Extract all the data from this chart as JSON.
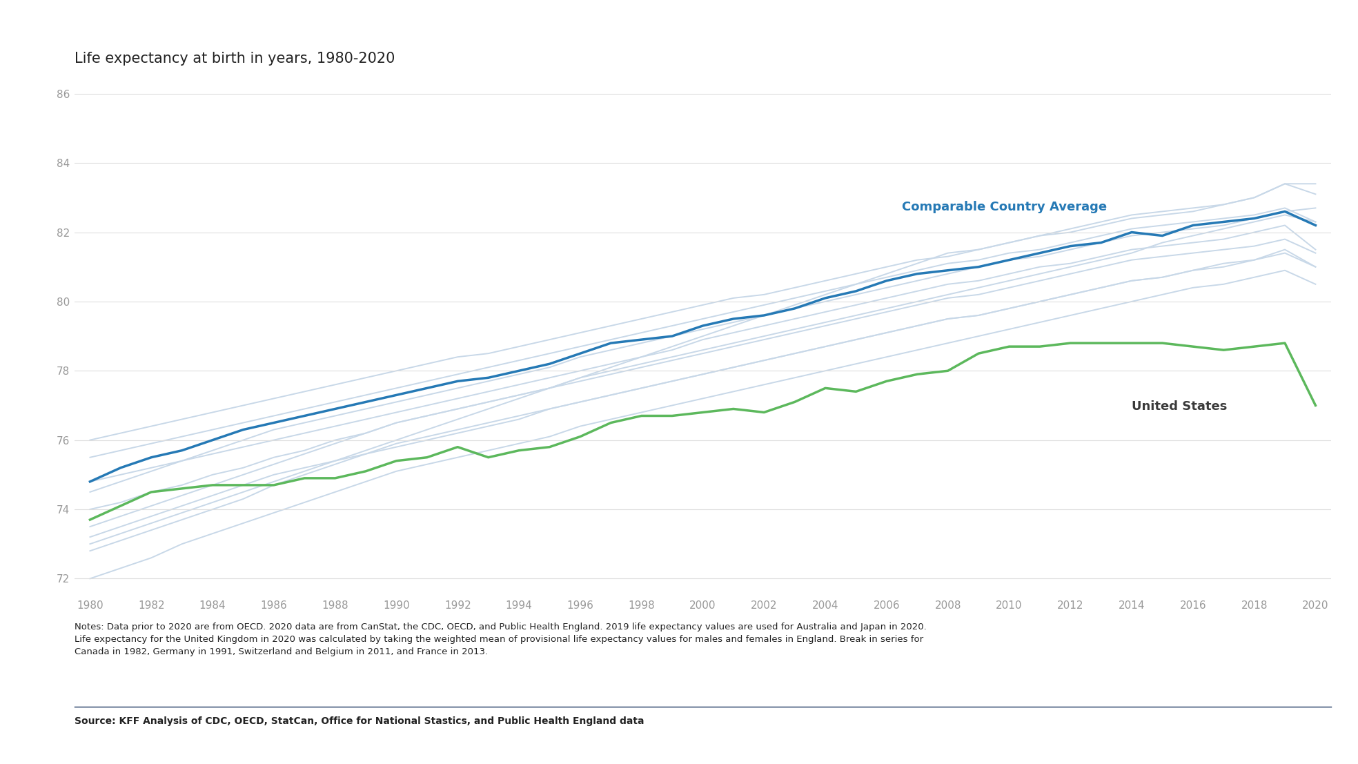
{
  "title": "Life expectancy at birth in years, 1980-2020",
  "notes": "Notes: Data prior to 2020 are from OECD. 2020 data are from CanStat, the CDC, OECD, and Public Health England. 2019 life expectancy values are used for Australia and Japan in 2020.\nLife expectancy for the United Kingdom in 2020 was calculated by taking the weighted mean of provisional life expectancy values for males and females in England. Break in series for\nCanada in 1982, Germany in 1991, Switzerland and Belgium in 2011, and France in 2013.",
  "source": "Source: KFF Analysis of CDC, OECD, StatCan, Office for National Stastics, and Public Health England data",
  "ylabel_ticks": [
    72,
    74,
    76,
    78,
    80,
    82,
    84,
    86
  ],
  "xlabel_ticks": [
    1980,
    1982,
    1984,
    1986,
    1988,
    1990,
    1992,
    1994,
    1996,
    1998,
    2000,
    2002,
    2004,
    2006,
    2008,
    2010,
    2012,
    2014,
    2016,
    2018,
    2020
  ],
  "ylim": [
    71.5,
    86.5
  ],
  "xlim": [
    1979.5,
    2020.5
  ],
  "us_color": "#5cb85c",
  "avg_color": "#2579b5",
  "gray_color": "#c8d8e8",
  "background_color": "#ffffff",
  "us_label": "United States",
  "avg_label": "Comparable Country Average",
  "us_data": {
    "years": [
      1980,
      1981,
      1982,
      1983,
      1984,
      1985,
      1986,
      1987,
      1988,
      1989,
      1990,
      1991,
      1992,
      1993,
      1994,
      1995,
      1996,
      1997,
      1998,
      1999,
      2000,
      2001,
      2002,
      2003,
      2004,
      2005,
      2006,
      2007,
      2008,
      2009,
      2010,
      2011,
      2012,
      2013,
      2014,
      2015,
      2016,
      2017,
      2018,
      2019,
      2020
    ],
    "values": [
      73.7,
      74.1,
      74.5,
      74.6,
      74.7,
      74.7,
      74.7,
      74.9,
      74.9,
      75.1,
      75.4,
      75.5,
      75.8,
      75.5,
      75.7,
      75.8,
      76.1,
      76.5,
      76.7,
      76.7,
      76.8,
      76.9,
      76.8,
      77.1,
      77.5,
      77.4,
      77.7,
      77.9,
      78.0,
      78.5,
      78.7,
      78.7,
      78.8,
      78.8,
      78.8,
      78.8,
      78.7,
      78.6,
      78.7,
      78.8,
      77.0
    ]
  },
  "avg_data": {
    "years": [
      1980,
      1981,
      1982,
      1983,
      1984,
      1985,
      1986,
      1987,
      1988,
      1989,
      1990,
      1991,
      1992,
      1993,
      1994,
      1995,
      1996,
      1997,
      1998,
      1999,
      2000,
      2001,
      2002,
      2003,
      2004,
      2005,
      2006,
      2007,
      2008,
      2009,
      2010,
      2011,
      2012,
      2013,
      2014,
      2015,
      2016,
      2017,
      2018,
      2019,
      2020
    ],
    "values": [
      74.8,
      75.2,
      75.5,
      75.7,
      76.0,
      76.3,
      76.5,
      76.7,
      76.9,
      77.1,
      77.3,
      77.5,
      77.7,
      77.8,
      78.0,
      78.2,
      78.5,
      78.8,
      78.9,
      79.0,
      79.3,
      79.5,
      79.6,
      79.8,
      80.1,
      80.3,
      80.6,
      80.8,
      80.9,
      81.0,
      81.2,
      81.4,
      81.6,
      81.7,
      82.0,
      81.9,
      82.2,
      82.3,
      82.4,
      82.6,
      82.2
    ]
  },
  "country_lines": [
    [
      73.0,
      73.3,
      73.6,
      73.9,
      74.2,
      74.5,
      74.8,
      75.1,
      75.4,
      75.7,
      76.0,
      76.3,
      76.6,
      76.9,
      77.2,
      77.5,
      77.8,
      78.1,
      78.4,
      78.7,
      79.0,
      79.3,
      79.6,
      79.9,
      80.2,
      80.5,
      80.8,
      81.1,
      81.4,
      81.5,
      81.7,
      81.9,
      82.1,
      82.3,
      82.5,
      82.6,
      82.7,
      82.8,
      83.0,
      83.4,
      83.4
    ],
    [
      76.0,
      76.2,
      76.4,
      76.6,
      76.8,
      77.0,
      77.2,
      77.4,
      77.6,
      77.8,
      78.0,
      78.2,
      78.4,
      78.5,
      78.7,
      78.9,
      79.1,
      79.3,
      79.5,
      79.7,
      79.9,
      80.1,
      80.2,
      80.4,
      80.6,
      80.8,
      81.0,
      81.2,
      81.3,
      81.5,
      81.7,
      81.9,
      82.0,
      82.2,
      82.4,
      82.5,
      82.6,
      82.8,
      83.0,
      83.4,
      83.1
    ],
    [
      74.5,
      74.8,
      75.1,
      75.4,
      75.7,
      76.0,
      76.3,
      76.5,
      76.7,
      76.9,
      77.1,
      77.3,
      77.5,
      77.7,
      77.9,
      78.1,
      78.4,
      78.6,
      78.8,
      79.0,
      79.2,
      79.4,
      79.6,
      79.8,
      80.0,
      80.2,
      80.4,
      80.6,
      80.8,
      81.0,
      81.2,
      81.3,
      81.5,
      81.7,
      81.9,
      82.0,
      82.1,
      82.2,
      82.4,
      82.6,
      82.7
    ],
    [
      73.5,
      73.8,
      74.1,
      74.4,
      74.7,
      75.0,
      75.3,
      75.6,
      75.9,
      76.2,
      76.5,
      76.7,
      76.9,
      77.1,
      77.3,
      77.5,
      77.8,
      78.0,
      78.2,
      78.4,
      78.6,
      78.8,
      79.0,
      79.2,
      79.4,
      79.6,
      79.8,
      80.0,
      80.2,
      80.4,
      80.6,
      80.8,
      81.0,
      81.2,
      81.4,
      81.7,
      81.9,
      82.1,
      82.3,
      82.5,
      82.3
    ],
    [
      74.0,
      74.2,
      74.5,
      74.7,
      75.0,
      75.2,
      75.5,
      75.7,
      76.0,
      76.2,
      76.5,
      76.7,
      76.9,
      77.1,
      77.3,
      77.5,
      77.7,
      77.9,
      78.1,
      78.3,
      78.5,
      78.7,
      78.9,
      79.1,
      79.3,
      79.5,
      79.7,
      79.9,
      80.1,
      80.2,
      80.4,
      80.6,
      80.8,
      81.0,
      81.2,
      81.3,
      81.4,
      81.5,
      81.6,
      81.8,
      81.4
    ],
    [
      73.2,
      73.5,
      73.8,
      74.1,
      74.4,
      74.7,
      75.0,
      75.2,
      75.4,
      75.6,
      75.8,
      76.0,
      76.2,
      76.4,
      76.6,
      76.9,
      77.1,
      77.3,
      77.5,
      77.7,
      77.9,
      78.1,
      78.3,
      78.5,
      78.7,
      78.9,
      79.1,
      79.3,
      79.5,
      79.6,
      79.8,
      80.0,
      80.2,
      80.4,
      80.6,
      80.7,
      80.9,
      81.1,
      81.2,
      81.5,
      81.0
    ],
    [
      75.5,
      75.7,
      75.9,
      76.1,
      76.3,
      76.5,
      76.7,
      76.9,
      77.1,
      77.3,
      77.5,
      77.7,
      77.9,
      78.1,
      78.3,
      78.5,
      78.7,
      78.9,
      79.1,
      79.3,
      79.5,
      79.7,
      79.9,
      80.1,
      80.3,
      80.5,
      80.7,
      80.9,
      81.1,
      81.2,
      81.4,
      81.5,
      81.7,
      81.9,
      82.1,
      82.2,
      82.3,
      82.4,
      82.5,
      82.7,
      82.3
    ],
    [
      74.8,
      75.0,
      75.2,
      75.4,
      75.6,
      75.8,
      76.0,
      76.2,
      76.4,
      76.6,
      76.8,
      77.0,
      77.2,
      77.4,
      77.6,
      77.8,
      78.0,
      78.2,
      78.4,
      78.6,
      78.9,
      79.1,
      79.3,
      79.5,
      79.7,
      79.9,
      80.1,
      80.3,
      80.5,
      80.6,
      80.8,
      81.0,
      81.1,
      81.3,
      81.5,
      81.6,
      81.7,
      81.8,
      82.0,
      82.2,
      81.5
    ],
    [
      72.8,
      73.1,
      73.4,
      73.7,
      74.0,
      74.3,
      74.7,
      75.0,
      75.3,
      75.6,
      75.9,
      76.1,
      76.3,
      76.5,
      76.7,
      76.9,
      77.1,
      77.3,
      77.5,
      77.7,
      77.9,
      78.1,
      78.3,
      78.5,
      78.7,
      78.9,
      79.1,
      79.3,
      79.5,
      79.6,
      79.8,
      80.0,
      80.2,
      80.4,
      80.6,
      80.7,
      80.9,
      81.0,
      81.2,
      81.4,
      81.0
    ],
    [
      72.0,
      72.3,
      72.6,
      73.0,
      73.3,
      73.6,
      73.9,
      74.2,
      74.5,
      74.8,
      75.1,
      75.3,
      75.5,
      75.7,
      75.9,
      76.1,
      76.4,
      76.6,
      76.8,
      77.0,
      77.2,
      77.4,
      77.6,
      77.8,
      78.0,
      78.2,
      78.4,
      78.6,
      78.8,
      79.0,
      79.2,
      79.4,
      79.6,
      79.8,
      80.0,
      80.2,
      80.4,
      80.5,
      80.7,
      80.9,
      80.5
    ]
  ]
}
